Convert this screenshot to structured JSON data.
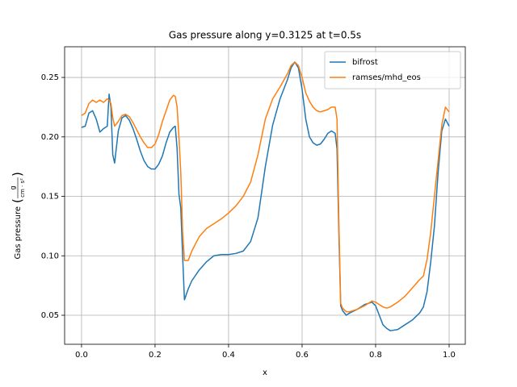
{
  "chart_data": {
    "type": "line",
    "title": "Gas pressure along y=0.3125 at t=0.5s",
    "xlabel": "x",
    "ylabel": "Gas pressure",
    "ylabel_unit_numerator": "g",
    "ylabel_unit_denominator": "cm · s²",
    "x": [
      0,
      0.01,
      0.02,
      0.03,
      0.04,
      0.05,
      0.06,
      0.07,
      0.075,
      0.08,
      0.085,
      0.09,
      0.1,
      0.11,
      0.12,
      0.13,
      0.14,
      0.15,
      0.16,
      0.17,
      0.18,
      0.19,
      0.2,
      0.21,
      0.22,
      0.23,
      0.24,
      0.25,
      0.255,
      0.26,
      0.265,
      0.27,
      0.275,
      0.28,
      0.29,
      0.3,
      0.32,
      0.34,
      0.36,
      0.38,
      0.4,
      0.42,
      0.44,
      0.46,
      0.48,
      0.5,
      0.52,
      0.54,
      0.56,
      0.57,
      0.58,
      0.59,
      0.6,
      0.61,
      0.62,
      0.63,
      0.64,
      0.65,
      0.66,
      0.67,
      0.68,
      0.69,
      0.695,
      0.7,
      0.705,
      0.71,
      0.72,
      0.73,
      0.75,
      0.77,
      0.79,
      0.8,
      0.81,
      0.82,
      0.83,
      0.84,
      0.86,
      0.88,
      0.9,
      0.92,
      0.93,
      0.94,
      0.95,
      0.96,
      0.97,
      0.98,
      0.99,
      1.0
    ],
    "series": [
      {
        "name": "bifrost",
        "color": "#1f77b4",
        "values": [
          0.208,
          0.209,
          0.22,
          0.222,
          0.215,
          0.204,
          0.207,
          0.209,
          0.236,
          0.225,
          0.185,
          0.178,
          0.205,
          0.216,
          0.218,
          0.214,
          0.207,
          0.198,
          0.188,
          0.18,
          0.175,
          0.173,
          0.173,
          0.177,
          0.184,
          0.195,
          0.204,
          0.208,
          0.209,
          0.19,
          0.152,
          0.14,
          0.1,
          0.063,
          0.072,
          0.079,
          0.088,
          0.095,
          0.1,
          0.101,
          0.101,
          0.102,
          0.104,
          0.112,
          0.132,
          0.175,
          0.21,
          0.232,
          0.248,
          0.258,
          0.263,
          0.258,
          0.24,
          0.215,
          0.2,
          0.195,
          0.193,
          0.194,
          0.198,
          0.203,
          0.205,
          0.203,
          0.19,
          0.12,
          0.058,
          0.054,
          0.05,
          0.052,
          0.055,
          0.059,
          0.061,
          0.058,
          0.05,
          0.042,
          0.039,
          0.037,
          0.038,
          0.042,
          0.046,
          0.052,
          0.057,
          0.07,
          0.095,
          0.125,
          0.17,
          0.205,
          0.215,
          0.209
        ]
      },
      {
        "name": "ramses/mhd_eos",
        "color": "#ff7f0e",
        "values": [
          0.218,
          0.22,
          0.228,
          0.231,
          0.229,
          0.231,
          0.229,
          0.232,
          0.231,
          0.228,
          0.216,
          0.209,
          0.213,
          0.218,
          0.219,
          0.217,
          0.212,
          0.206,
          0.2,
          0.195,
          0.191,
          0.191,
          0.194,
          0.202,
          0.213,
          0.222,
          0.231,
          0.235,
          0.234,
          0.225,
          0.2,
          0.17,
          0.12,
          0.096,
          0.096,
          0.104,
          0.116,
          0.123,
          0.127,
          0.131,
          0.136,
          0.142,
          0.15,
          0.162,
          0.185,
          0.215,
          0.232,
          0.242,
          0.253,
          0.26,
          0.263,
          0.26,
          0.25,
          0.237,
          0.23,
          0.225,
          0.222,
          0.221,
          0.222,
          0.223,
          0.225,
          0.225,
          0.215,
          0.13,
          0.06,
          0.056,
          0.053,
          0.053,
          0.055,
          0.058,
          0.062,
          0.061,
          0.059,
          0.057,
          0.056,
          0.057,
          0.061,
          0.066,
          0.073,
          0.08,
          0.083,
          0.097,
          0.12,
          0.15,
          0.18,
          0.21,
          0.225,
          0.221
        ]
      }
    ],
    "xlim": [
      -0.046,
      1.044
    ],
    "ylim": [
      0.0256,
      0.2758
    ],
    "xticks": [
      {
        "value": 0,
        "label": "0.0"
      },
      0.2,
      0.4,
      0.6,
      0.8,
      {
        "value": 1,
        "label": "1.0"
      }
    ],
    "yticks": [
      0.05,
      {
        "value": 0.1,
        "label": "0.10"
      },
      0.15,
      {
        "value": 0.2,
        "label": "0.20"
      },
      0.25
    ],
    "grid": true,
    "legend": "upper right"
  }
}
